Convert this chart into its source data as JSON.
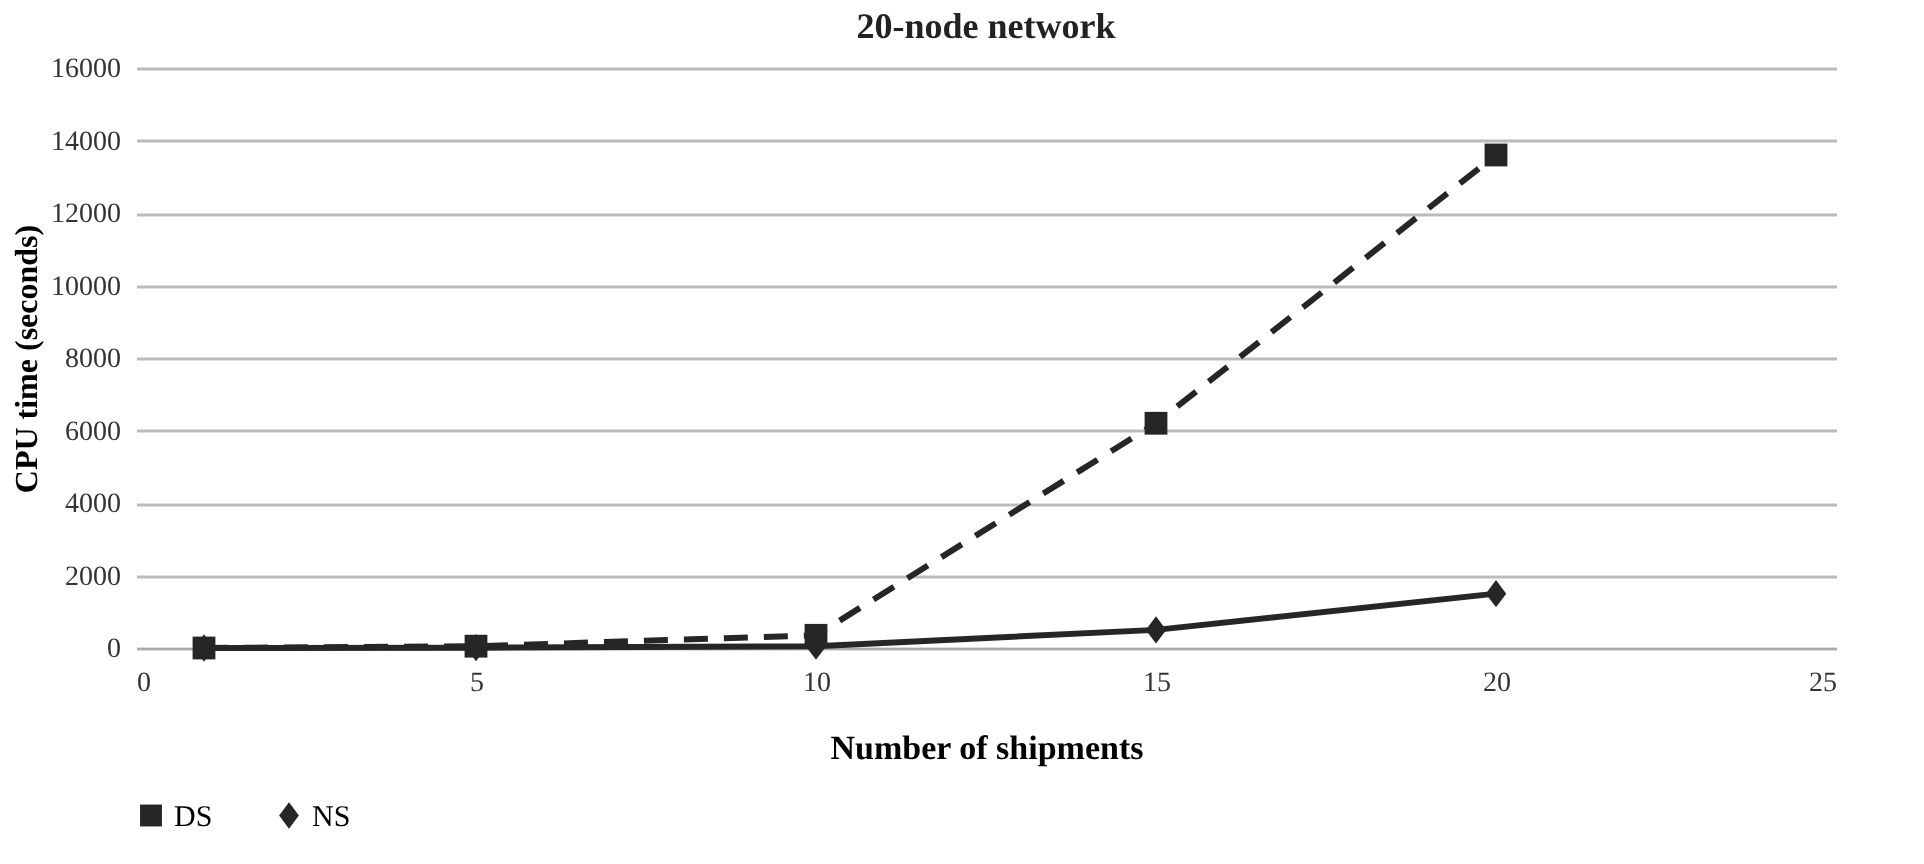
{
  "chart_data": {
    "type": "line",
    "title": "20-node network",
    "xlabel": "Number of shipments",
    "ylabel": "CPU time (seconds)",
    "x": [
      1,
      5,
      10,
      15,
      20
    ],
    "series": [
      {
        "name": "DS",
        "color": "#262626",
        "values": [
          0,
          50,
          350,
          6200,
          13600
        ],
        "marker": "square",
        "line_style": "dashed"
      },
      {
        "name": "NS",
        "color": "#262626",
        "values": [
          0,
          10,
          50,
          500,
          1500
        ],
        "marker": "diamond",
        "line_style": "solid"
      }
    ],
    "xlim": [
      0,
      25
    ],
    "xticks": [
      0,
      5,
      10,
      15,
      20,
      25
    ],
    "ylim": [
      0,
      16000
    ],
    "yticks": [
      0,
      2000,
      4000,
      6000,
      8000,
      10000,
      12000,
      14000,
      16000
    ],
    "grid": "y",
    "legend": "bottom"
  }
}
